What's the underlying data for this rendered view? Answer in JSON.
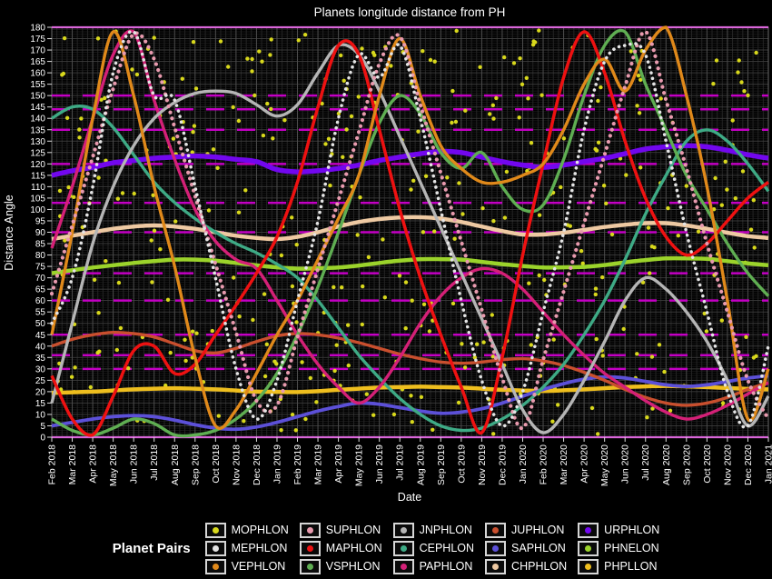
{
  "title": "Planets longitude distance from PH",
  "axes": {
    "x_label": "Date",
    "y_label": "Distance Angle",
    "y_min": 0,
    "y_max": 180,
    "y_tick_step": 5
  },
  "legend": {
    "title": "Planet Pairs",
    "columns": [
      [
        "MOPHLON",
        "MEPHLON",
        "VEPHLON"
      ],
      [
        "SUPHLON",
        "MAPHLON",
        "VSPHLON"
      ],
      [
        "JNPHLON",
        "CEPHLON",
        "PAPHLON"
      ],
      [
        "JUPHLON",
        "SAPHLON",
        "CHPHLON"
      ],
      [
        "URPHLON",
        "PHNELON",
        "PHPLLON"
      ]
    ]
  },
  "chart_data": {
    "type": "line",
    "title": "Planets longitude distance from PH",
    "xlabel": "Date",
    "ylabel": "Distance Angle",
    "ylim": [
      0,
      180
    ],
    "grid": true,
    "legend_position": "bottom",
    "categories": [
      "Feb 2018",
      "Mar 2018",
      "Apr 2018",
      "May 2018",
      "Jun 2018",
      "Jul 2018",
      "Aug 2018",
      "Sep 2018",
      "Oct 2018",
      "Nov 2018",
      "Dec 2018",
      "Jan 2019",
      "Feb 2019",
      "Mar 2019",
      "Apr 2019",
      "May 2019",
      "Jun 2019",
      "Jul 2019",
      "Aug 2019",
      "Sep 2019",
      "Oct 2019",
      "Nov 2019",
      "Dec 2019",
      "Jan 2020",
      "Feb 2020",
      "Mar 2020",
      "Apr 2020",
      "May 2020",
      "Jun 2020",
      "Jul 2020",
      "Aug 2020",
      "Sep 2020",
      "Oct 2020",
      "Nov 2020",
      "Dec 2020",
      "Jan 2021"
    ],
    "aspect_lines": {
      "color": "#c400c4",
      "solid": [
        0,
        180
      ],
      "dashed": [
        30,
        36,
        45,
        60,
        72,
        90,
        102.9,
        120,
        135,
        144,
        150
      ]
    },
    "series": [
      {
        "name": "MOPHLON",
        "color": "#d8d81c",
        "type": "scatter-random",
        "count": 380,
        "seed": 123456,
        "dot_radius": 2.2
      },
      {
        "name": "MEPHLON",
        "color": "#e4e4e4",
        "type": "line",
        "width": 3.6,
        "dotted": true,
        "values": [
          50,
          70,
          110,
          160,
          178,
          150,
          148,
          110,
          70,
          30,
          8,
          25,
          60,
          95,
          140,
          168,
          158,
          172,
          140,
          100,
          60,
          25,
          5,
          20,
          55,
          90,
          135,
          165,
          172,
          168,
          130,
          90,
          55,
          20,
          5,
          40
        ]
      },
      {
        "name": "VEPHLON",
        "color": "#e0891a",
        "type": "line",
        "width": 3.4,
        "values": [
          45,
          90,
          140,
          178,
          150,
          110,
          75,
          35,
          5,
          12,
          28,
          45,
          60,
          78,
          96,
          115,
          150,
          175,
          150,
          128,
          118,
          112,
          112,
          115,
          120,
          135,
          155,
          166,
          152,
          170,
          180,
          150,
          110,
          60,
          8,
          30
        ]
      },
      {
        "name": "SUPHLON",
        "color": "#e89aae",
        "type": "line",
        "width": 4.2,
        "dotted": true,
        "values": [
          63,
          93,
          123,
          153,
          177,
          166,
          136,
          106,
          76,
          46,
          16,
          14,
          44,
          74,
          104,
          134,
          164,
          176,
          146,
          116,
          86,
          56,
          26,
          4,
          34,
          64,
          94,
          124,
          154,
          178,
          148,
          118,
          85,
          55,
          25,
          8
        ]
      },
      {
        "name": "MAPHLON",
        "color": "#ee1111",
        "type": "line",
        "width": 3.5,
        "values": [
          27,
          8,
          1,
          18,
          38,
          40,
          28,
          32,
          45,
          58,
          72,
          88,
          112,
          145,
          172,
          168,
          135,
          100,
          70,
          45,
          22,
          2,
          35,
          80,
          120,
          158,
          178,
          160,
          130,
          105,
          88,
          80,
          85,
          95,
          105,
          112
        ]
      },
      {
        "name": "VSPHLON",
        "color": "#5fae52",
        "type": "line",
        "width": 3.4,
        "values": [
          8,
          3,
          1,
          4,
          8,
          6,
          1,
          1,
          3,
          8,
          16,
          28,
          45,
          66,
          90,
          115,
          138,
          150,
          142,
          125,
          118,
          125,
          110,
          100,
          102,
          122,
          150,
          172,
          178,
          155,
          135,
          115,
          100,
          85,
          72,
          62
        ]
      },
      {
        "name": "JNPHLON",
        "color": "#b5b5b5",
        "type": "line",
        "width": 3.4,
        "values": [
          15,
          50,
          85,
          110,
          128,
          140,
          147,
          151,
          152,
          151,
          146,
          141,
          146,
          160,
          172,
          168,
          152,
          132,
          112,
          92,
          72,
          52,
          32,
          12,
          2,
          10,
          25,
          42,
          60,
          70,
          65,
          55,
          42,
          25,
          5,
          18
        ]
      },
      {
        "name": "CEPHLON",
        "color": "#3eaa85",
        "type": "line",
        "width": 3.4,
        "values": [
          140,
          145,
          144,
          136,
          124,
          112,
          103,
          96,
          90,
          85,
          81,
          76,
          70,
          60,
          48,
          36,
          26,
          17,
          10,
          5,
          3,
          4,
          8,
          14,
          22,
          32,
          45,
          60,
          78,
          98,
          115,
          130,
          135,
          130,
          120,
          108
        ]
      },
      {
        "name": "PAPHLON",
        "color": "#d42077",
        "type": "line",
        "width": 3.4,
        "values": [
          83,
          110,
          140,
          168,
          178,
          148,
          122,
          100,
          86,
          78,
          74,
          60,
          45,
          32,
          22,
          15,
          22,
          35,
          50,
          62,
          70,
          74,
          72,
          65,
          55,
          45,
          36,
          28,
          22,
          16,
          11,
          8,
          10,
          14,
          19,
          24
        ]
      },
      {
        "name": "JUPHLON",
        "color": "#c94f2e",
        "type": "line",
        "width": 3.4,
        "values": [
          40,
          43,
          45,
          46,
          45.5,
          44,
          41,
          38,
          37,
          39,
          42,
          44.5,
          45.5,
          45,
          43.5,
          41.5,
          39,
          36.5,
          34.5,
          33,
          32.5,
          33,
          34,
          34.5,
          33.5,
          31.5,
          28.5,
          25,
          21,
          17.5,
          15,
          14,
          15,
          17.5,
          21,
          24
        ]
      },
      {
        "name": "SAPHLON",
        "color": "#5c50d8",
        "type": "line",
        "width": 3.8,
        "values": [
          5,
          6.5,
          8,
          9,
          9.5,
          9,
          7.5,
          5.5,
          4,
          3.5,
          4.5,
          6.5,
          9,
          11.5,
          13.5,
          15,
          14.5,
          13,
          11.5,
          10.5,
          11,
          12.5,
          15,
          18,
          21,
          23.5,
          25.5,
          26.5,
          26,
          24.5,
          23,
          22.3,
          23,
          24.5,
          26,
          27
        ]
      },
      {
        "name": "CHPHLON",
        "color": "#eec9a2",
        "type": "line",
        "width": 4.5,
        "values": [
          87,
          88.5,
          90,
          91.5,
          92.5,
          93,
          92.5,
          91.5,
          90,
          88.5,
          87.5,
          87,
          88,
          90,
          92.5,
          94.5,
          95.8,
          96.5,
          96.6,
          96,
          94.5,
          92.5,
          90.5,
          89,
          89,
          89.8,
          91,
          92.3,
          93.3,
          94,
          94,
          93,
          91.5,
          89.8,
          88.3,
          87.5
        ]
      },
      {
        "name": "URPHLON",
        "color": "#7207ee",
        "type": "line",
        "width": 5.5,
        "values": [
          115,
          117,
          118.5,
          120.5,
          121.5,
          122.5,
          123,
          123.5,
          123,
          122,
          121,
          117.5,
          116.5,
          117,
          118,
          119.5,
          121.5,
          123,
          124.5,
          125.5,
          125,
          123,
          121,
          119.5,
          118.5,
          119.5,
          121,
          122.5,
          124.5,
          126.5,
          127.5,
          128,
          127.5,
          126,
          124,
          122.5
        ]
      },
      {
        "name": "PHNELON",
        "color": "#9bd32b",
        "type": "line",
        "width": 4.5,
        "values": [
          72,
          73.3,
          74.5,
          75.5,
          76.5,
          77.3,
          78,
          78,
          77.5,
          76.5,
          75.5,
          74.6,
          74,
          74.2,
          74.5,
          75.4,
          76.5,
          77.5,
          78.2,
          78.2,
          78,
          77,
          76,
          75.2,
          74.5,
          74.6,
          74.8,
          75.6,
          76.8,
          77.8,
          78.5,
          78.5,
          78.3,
          77.3,
          76.3,
          75.5
        ]
      },
      {
        "name": "PHPLLON",
        "color": "#eebe1e",
        "type": "line",
        "width": 4.5,
        "values": [
          19.5,
          19.7,
          20,
          20.5,
          21,
          21.3,
          21.5,
          21.3,
          21,
          20.5,
          20,
          19.9,
          19.8,
          20.2,
          20.8,
          21.3,
          21.8,
          22,
          22.2,
          22,
          21.8,
          21.3,
          20.8,
          20.5,
          20.3,
          20.6,
          21,
          21.5,
          22,
          22.3,
          22.5,
          22.3,
          22,
          21.6,
          21.2,
          21
        ]
      }
    ]
  }
}
